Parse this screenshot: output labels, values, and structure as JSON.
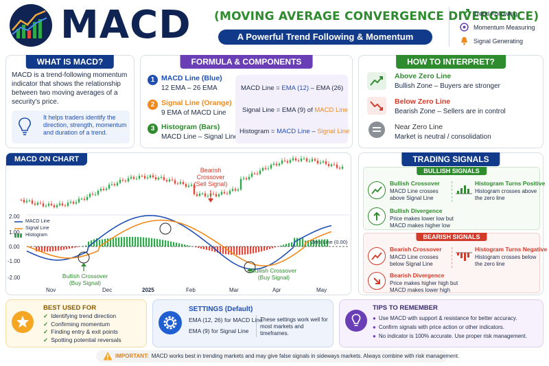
{
  "header": {
    "title": "MACD",
    "subtitle": "(MOVING AVERAGE CONVERGENCE DIVERGENCE)",
    "tagline": "A Powerful Trend Following & Momentum Indicator",
    "legend": [
      {
        "icon": "trend-up-icon",
        "label": "Trend Following"
      },
      {
        "icon": "target-icon",
        "label": "Momentum Measuring"
      },
      {
        "icon": "bell-icon",
        "label": "Signal Generating"
      }
    ]
  },
  "what_is": {
    "title": "WHAT IS MACD?",
    "body": "MACD is a trend-following momentum indicator that shows the relationship between two moving averages of a security's price.",
    "tip": "It helps traders identify the direction, strength, momentum and duration of a trend."
  },
  "formula": {
    "title": "FORMULA & COMPONENTS",
    "items": [
      {
        "num": "1",
        "name": "MACD Line (Blue)",
        "desc": "12 EMA – 26 EMA"
      },
      {
        "num": "2",
        "name": "Signal Line (Orange)",
        "desc": "9 EMA of MACD Line"
      },
      {
        "num": "3",
        "name": "Histogram (Bars)",
        "desc": "MACD Line – Signal Line"
      }
    ],
    "eq1_left": "MACD Line = ",
    "eq1_a": "EMA (12)",
    "eq1_mid": " – EMA (26)",
    "eq2_left": "Signal Line = EMA (9) of ",
    "eq2_a": "MACD Line",
    "eq3_left": "Histogram = ",
    "eq3_a": "MACD Line",
    "eq3_mid": " – ",
    "eq3_b": "Signal Line"
  },
  "interpret": {
    "title": "HOW TO INTERPRET?",
    "items": [
      {
        "head": "Above Zero Line",
        "desc": "Bullish Zone – Buyers are stronger",
        "color": "#2e8b2e"
      },
      {
        "head": "Below Zero Line",
        "desc": "Bearish Zone – Sellers are in control",
        "color": "#d23a2a"
      },
      {
        "head": "Near Zero Line",
        "desc": "Market is neutral / consolidation",
        "color": "#444444"
      }
    ]
  },
  "chart": {
    "title": "MACD ON CHART",
    "bearish_label": "Bearish Crossover",
    "bearish_sub": "(Sell Signal)",
    "bullish_label": "Bullish Crossover",
    "bullish_sub": "(Buy Signal)",
    "legend_macd": "MACD Line",
    "legend_signal": "Signal Line",
    "legend_hist": "Histogram",
    "zero_label": "Zero Line (0.00)",
    "yticks": [
      "2.00",
      "1.00",
      "0.00",
      "-1.00",
      "-2.00"
    ],
    "xticks": [
      "Nov",
      "Dec",
      "2025",
      "Feb",
      "Mar",
      "Apr",
      "May"
    ]
  },
  "signals": {
    "title": "TRADING SIGNALS",
    "bull_title": "BULLISH SIGNALS",
    "bear_title": "BEARISH SIGNALS",
    "bull": [
      {
        "head": "Bullish Crossover",
        "desc": "MACD Line crosses above Signal Line"
      },
      {
        "head": "Histogram Turns Positive",
        "desc": "Histogram crosses above the zero line"
      },
      {
        "head": "Bullish Divergence",
        "desc": "Price makes lower low but MACD makes higher low"
      }
    ],
    "bear": [
      {
        "head": "Bearish Crossover",
        "desc": "MACD Line crosses below Signal Line"
      },
      {
        "head": "Histogram Turns Negative",
        "desc": "Histogram crosses below the zero line"
      },
      {
        "head": "Bearish Divergence",
        "desc": "Price makes higher high but MACD makes lower high"
      }
    ]
  },
  "best_used": {
    "title": "BEST USED FOR",
    "items": [
      "Identifying trend direction",
      "Confirming momentum",
      "Finding entry & exit points",
      "Spotting potential reversals"
    ]
  },
  "settings": {
    "title": "SETTINGS (Default)",
    "line1": "EMA (12, 26) for MACD Line",
    "line2": "EMA (9) for Signal Line",
    "note": "These settings work well for most markets and timeframes."
  },
  "tips": {
    "title": "TIPS TO REMEMBER",
    "items": [
      "Use MACD with support & resistance for better accuracy.",
      "Confirm signals with price action or other indicators.",
      "No indicator is 100% accurate. Use proper risk management."
    ]
  },
  "footer": {
    "important": "IMPORTANT:",
    "text": "MACD works best in trending markets and may give false signals in sideways markets. Always combine with risk management."
  },
  "colors": {
    "navy": "#0f2452",
    "green": "#2e8b2e",
    "red": "#d23a2a",
    "blue": "#1f4fb3",
    "orange": "#f08a1c",
    "purple": "#6a3fb5"
  }
}
